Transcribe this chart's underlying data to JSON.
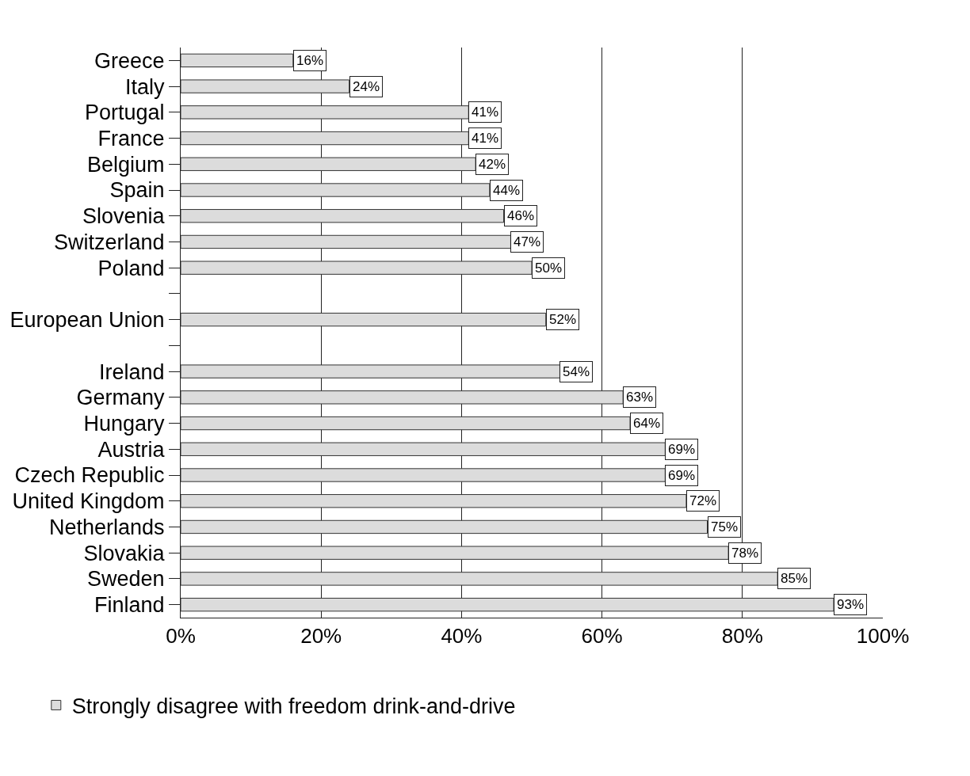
{
  "chart_data": {
    "type": "bar",
    "orientation": "horizontal",
    "categories": [
      "Greece",
      "Italy",
      "Portugal",
      "France",
      "Belgium",
      "Spain",
      "Slovenia",
      "Switzerland",
      "Poland",
      null,
      "European Union",
      null,
      "Ireland",
      "Germany",
      "Hungary",
      "Austria",
      "Czech Republic",
      "United Kingdom",
      "Netherlands",
      "Slovakia",
      "Sweden",
      "Finland"
    ],
    "series": [
      {
        "name": "Strongly disagree with freedom drink-and-drive",
        "color": "#dcdcdc",
        "values": [
          16,
          24,
          41,
          41,
          42,
          44,
          46,
          47,
          50,
          null,
          52,
          null,
          54,
          63,
          64,
          69,
          69,
          72,
          75,
          78,
          85,
          93
        ],
        "value_labels": [
          "16%",
          "24%",
          "41%",
          "41%",
          "42%",
          "44%",
          "46%",
          "47%",
          "50%",
          null,
          "52%",
          null,
          "54%",
          "63%",
          "64%",
          "69%",
          "69%",
          "72%",
          "75%",
          "78%",
          "85%",
          "93%"
        ]
      }
    ],
    "xlim": [
      0,
      100
    ],
    "xticks": [
      {
        "value": 0,
        "label": "0%"
      },
      {
        "value": 20,
        "label": "20%"
      },
      {
        "value": 40,
        "label": "40%"
      },
      {
        "value": 60,
        "label": "60%"
      },
      {
        "value": 80,
        "label": "80%"
      },
      {
        "value": 100,
        "label": "100%"
      }
    ],
    "grid": "x",
    "legend": "bottom"
  }
}
